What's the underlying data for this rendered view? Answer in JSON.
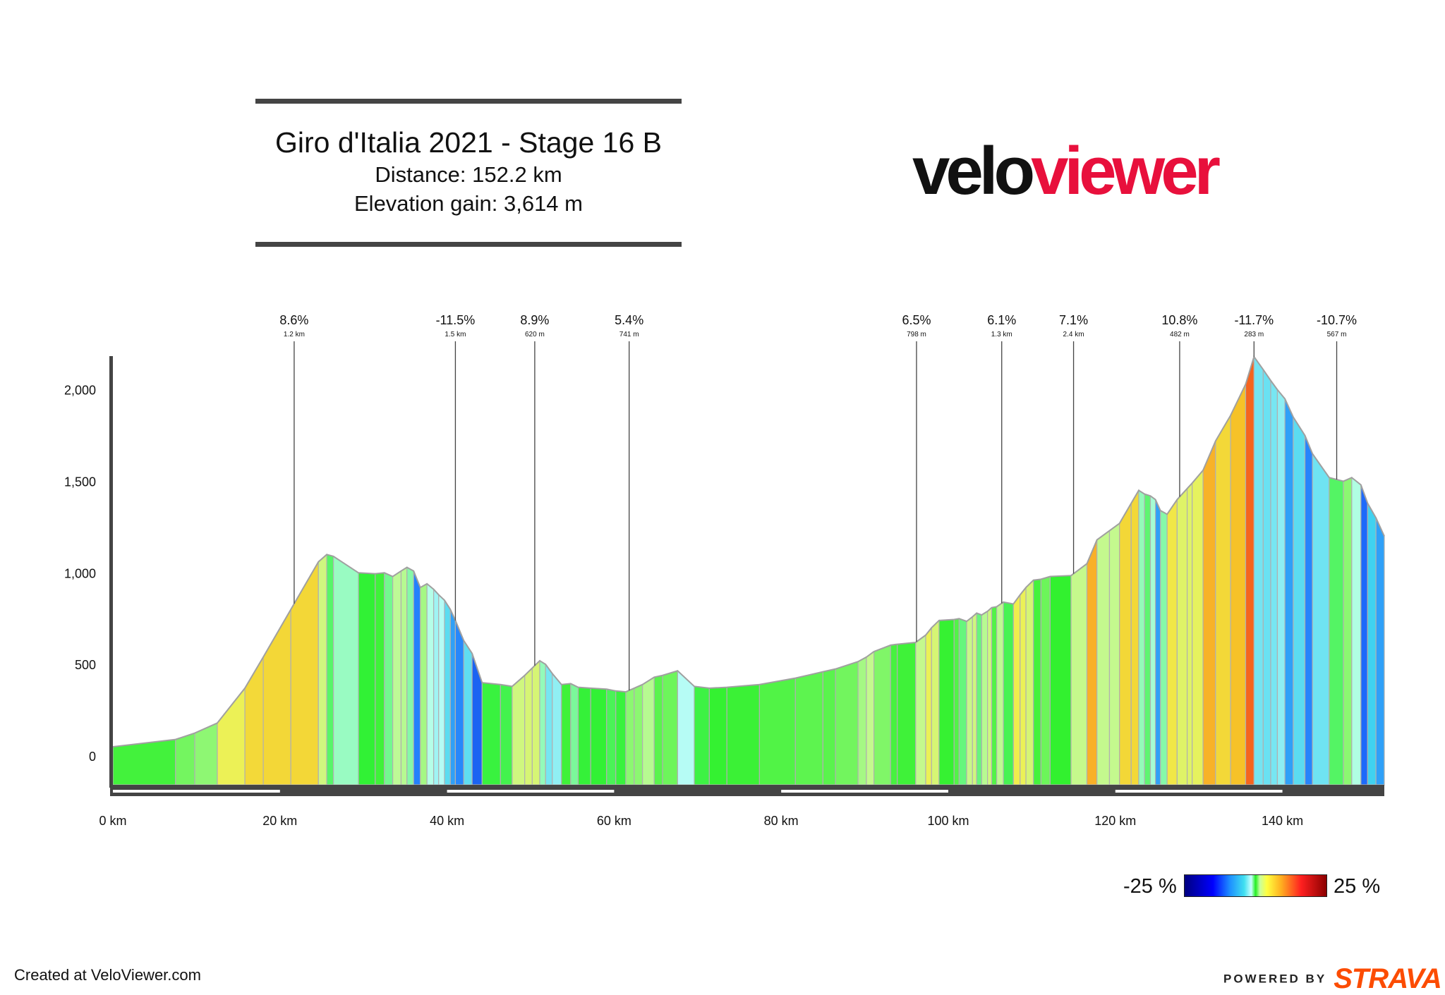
{
  "header": {
    "title": "Giro d'Italia 2021 - Stage 16 B",
    "distance": "Distance: 152.2 km",
    "elevation": "Elevation gain: 3,614 m"
  },
  "logo": {
    "part1": "velo",
    "part2": "viewer"
  },
  "legend": {
    "min_label": "-25 %",
    "max_label": "25 %"
  },
  "footer": {
    "created": "Created at VeloViewer.com",
    "powered": "POWERED BY",
    "strava": "STRAVA"
  },
  "colors": {
    "brand_red": "#e8103c",
    "strava_orange": "#fc4c02",
    "axis": "#444444",
    "profile_outline": "#a0a0a0"
  },
  "chart_data": {
    "type": "area",
    "xlim": [
      0,
      152.2
    ],
    "ylim": [
      -200,
      2200
    ],
    "x_ticks": [
      0,
      20,
      40,
      60,
      80,
      100,
      120,
      140
    ],
    "x_tick_labels": [
      "0 km",
      "20 km",
      "40 km",
      "60 km",
      "80 km",
      "100 km",
      "120 km",
      "140 km"
    ],
    "y_ticks": [
      0,
      500,
      1000,
      1500,
      2000
    ],
    "y_tick_labels": [
      "0",
      "500",
      "1,000",
      "1,500",
      "2,000"
    ],
    "profile": [
      [
        0,
        50
      ],
      [
        7.5,
        90
      ],
      [
        9.8,
        125
      ],
      [
        12.5,
        180
      ],
      [
        15.8,
        370
      ],
      [
        18,
        540
      ],
      [
        21.3,
        800
      ],
      [
        24.6,
        1060
      ],
      [
        25.6,
        1100
      ],
      [
        26.4,
        1090
      ],
      [
        29.4,
        1000
      ],
      [
        31.4,
        995
      ],
      [
        32.5,
        1000
      ],
      [
        33.5,
        980
      ],
      [
        34.5,
        1010
      ],
      [
        35.2,
        1030
      ],
      [
        36.0,
        1010
      ],
      [
        36.8,
        920
      ],
      [
        37.6,
        940
      ],
      [
        38.4,
        910
      ],
      [
        39.0,
        880
      ],
      [
        39.7,
        850
      ],
      [
        40.4,
        800
      ],
      [
        41.0,
        740
      ],
      [
        42.0,
        630
      ],
      [
        43.0,
        560
      ],
      [
        44.2,
        400
      ],
      [
        46.4,
        390
      ],
      [
        47.8,
        380
      ],
      [
        49.3,
        440
      ],
      [
        50.2,
        480
      ],
      [
        51.1,
        520
      ],
      [
        51.8,
        500
      ],
      [
        52.6,
        450
      ],
      [
        53.7,
        390
      ],
      [
        54.8,
        395
      ],
      [
        55.7,
        375
      ],
      [
        57.2,
        370
      ],
      [
        59.1,
        365
      ],
      [
        60.2,
        355
      ],
      [
        61.4,
        350
      ],
      [
        62.4,
        370
      ],
      [
        63.4,
        390
      ],
      [
        64.8,
        430
      ],
      [
        65.8,
        440
      ],
      [
        67.6,
        465
      ],
      [
        69.6,
        380
      ],
      [
        71.4,
        370
      ],
      [
        73.5,
        375
      ],
      [
        77.4,
        390
      ],
      [
        81.7,
        425
      ],
      [
        85.0,
        460
      ],
      [
        86.5,
        475
      ],
      [
        89.2,
        515
      ],
      [
        90.2,
        540
      ],
      [
        91.1,
        570
      ],
      [
        93.1,
        605
      ],
      [
        93.9,
        610
      ],
      [
        96.1,
        620
      ],
      [
        97.3,
        660
      ],
      [
        98.0,
        700
      ],
      [
        98.9,
        740
      ],
      [
        100.7,
        745
      ],
      [
        101.3,
        750
      ],
      [
        102.2,
        735
      ],
      [
        102.9,
        760
      ],
      [
        103.4,
        780
      ],
      [
        104.0,
        770
      ],
      [
        104.7,
        790
      ],
      [
        105.2,
        810
      ],
      [
        105.8,
        815
      ],
      [
        106.6,
        840
      ],
      [
        107.8,
        830
      ],
      [
        108.6,
        880
      ],
      [
        109.3,
        920
      ],
      [
        110.2,
        960
      ],
      [
        111.1,
        965
      ],
      [
        112.2,
        980
      ],
      [
        114.7,
        985
      ],
      [
        116.6,
        1050
      ],
      [
        117.8,
        1180
      ],
      [
        119.3,
        1230
      ],
      [
        120.5,
        1270
      ],
      [
        121.9,
        1380
      ],
      [
        122.8,
        1450
      ],
      [
        123.5,
        1430
      ],
      [
        124.2,
        1420
      ],
      [
        124.8,
        1400
      ],
      [
        125.4,
        1340
      ],
      [
        126.2,
        1320
      ],
      [
        127.4,
        1400
      ],
      [
        128.6,
        1460
      ],
      [
        129.2,
        1490
      ],
      [
        130.5,
        1560
      ],
      [
        132.0,
        1720
      ],
      [
        133.8,
        1860
      ],
      [
        135.6,
        2030
      ],
      [
        136.6,
        2180
      ],
      [
        137.7,
        2110
      ],
      [
        138.6,
        2050
      ],
      [
        139.4,
        2000
      ],
      [
        140.3,
        1950
      ],
      [
        141.3,
        1850
      ],
      [
        142.7,
        1750
      ],
      [
        143.6,
        1650
      ],
      [
        145.6,
        1520
      ],
      [
        147.3,
        1500
      ],
      [
        148.3,
        1520
      ],
      [
        149.4,
        1480
      ],
      [
        150.2,
        1380
      ],
      [
        151.2,
        1300
      ],
      [
        152.2,
        1200
      ]
    ],
    "climbs": [
      {
        "x": 21.7,
        "gradient": "8.6%",
        "length": "1.2 km"
      },
      {
        "x": 41.0,
        "gradient": "-11.5%",
        "length": "1.5 km"
      },
      {
        "x": 50.5,
        "gradient": "8.9%",
        "length": "620 m"
      },
      {
        "x": 61.8,
        "gradient": "5.4%",
        "length": "741 m"
      },
      {
        "x": 96.2,
        "gradient": "6.5%",
        "length": "798 m"
      },
      {
        "x": 106.4,
        "gradient": "6.1%",
        "length": "1.3 km"
      },
      {
        "x": 115.0,
        "gradient": "7.1%",
        "length": "2.4 km"
      },
      {
        "x": 127.7,
        "gradient": "10.8%",
        "length": "482 m"
      },
      {
        "x": 136.6,
        "gradient": "-11.7%",
        "length": "283 m"
      },
      {
        "x": 146.5,
        "gradient": "-10.7%",
        "length": "567 m"
      }
    ]
  }
}
